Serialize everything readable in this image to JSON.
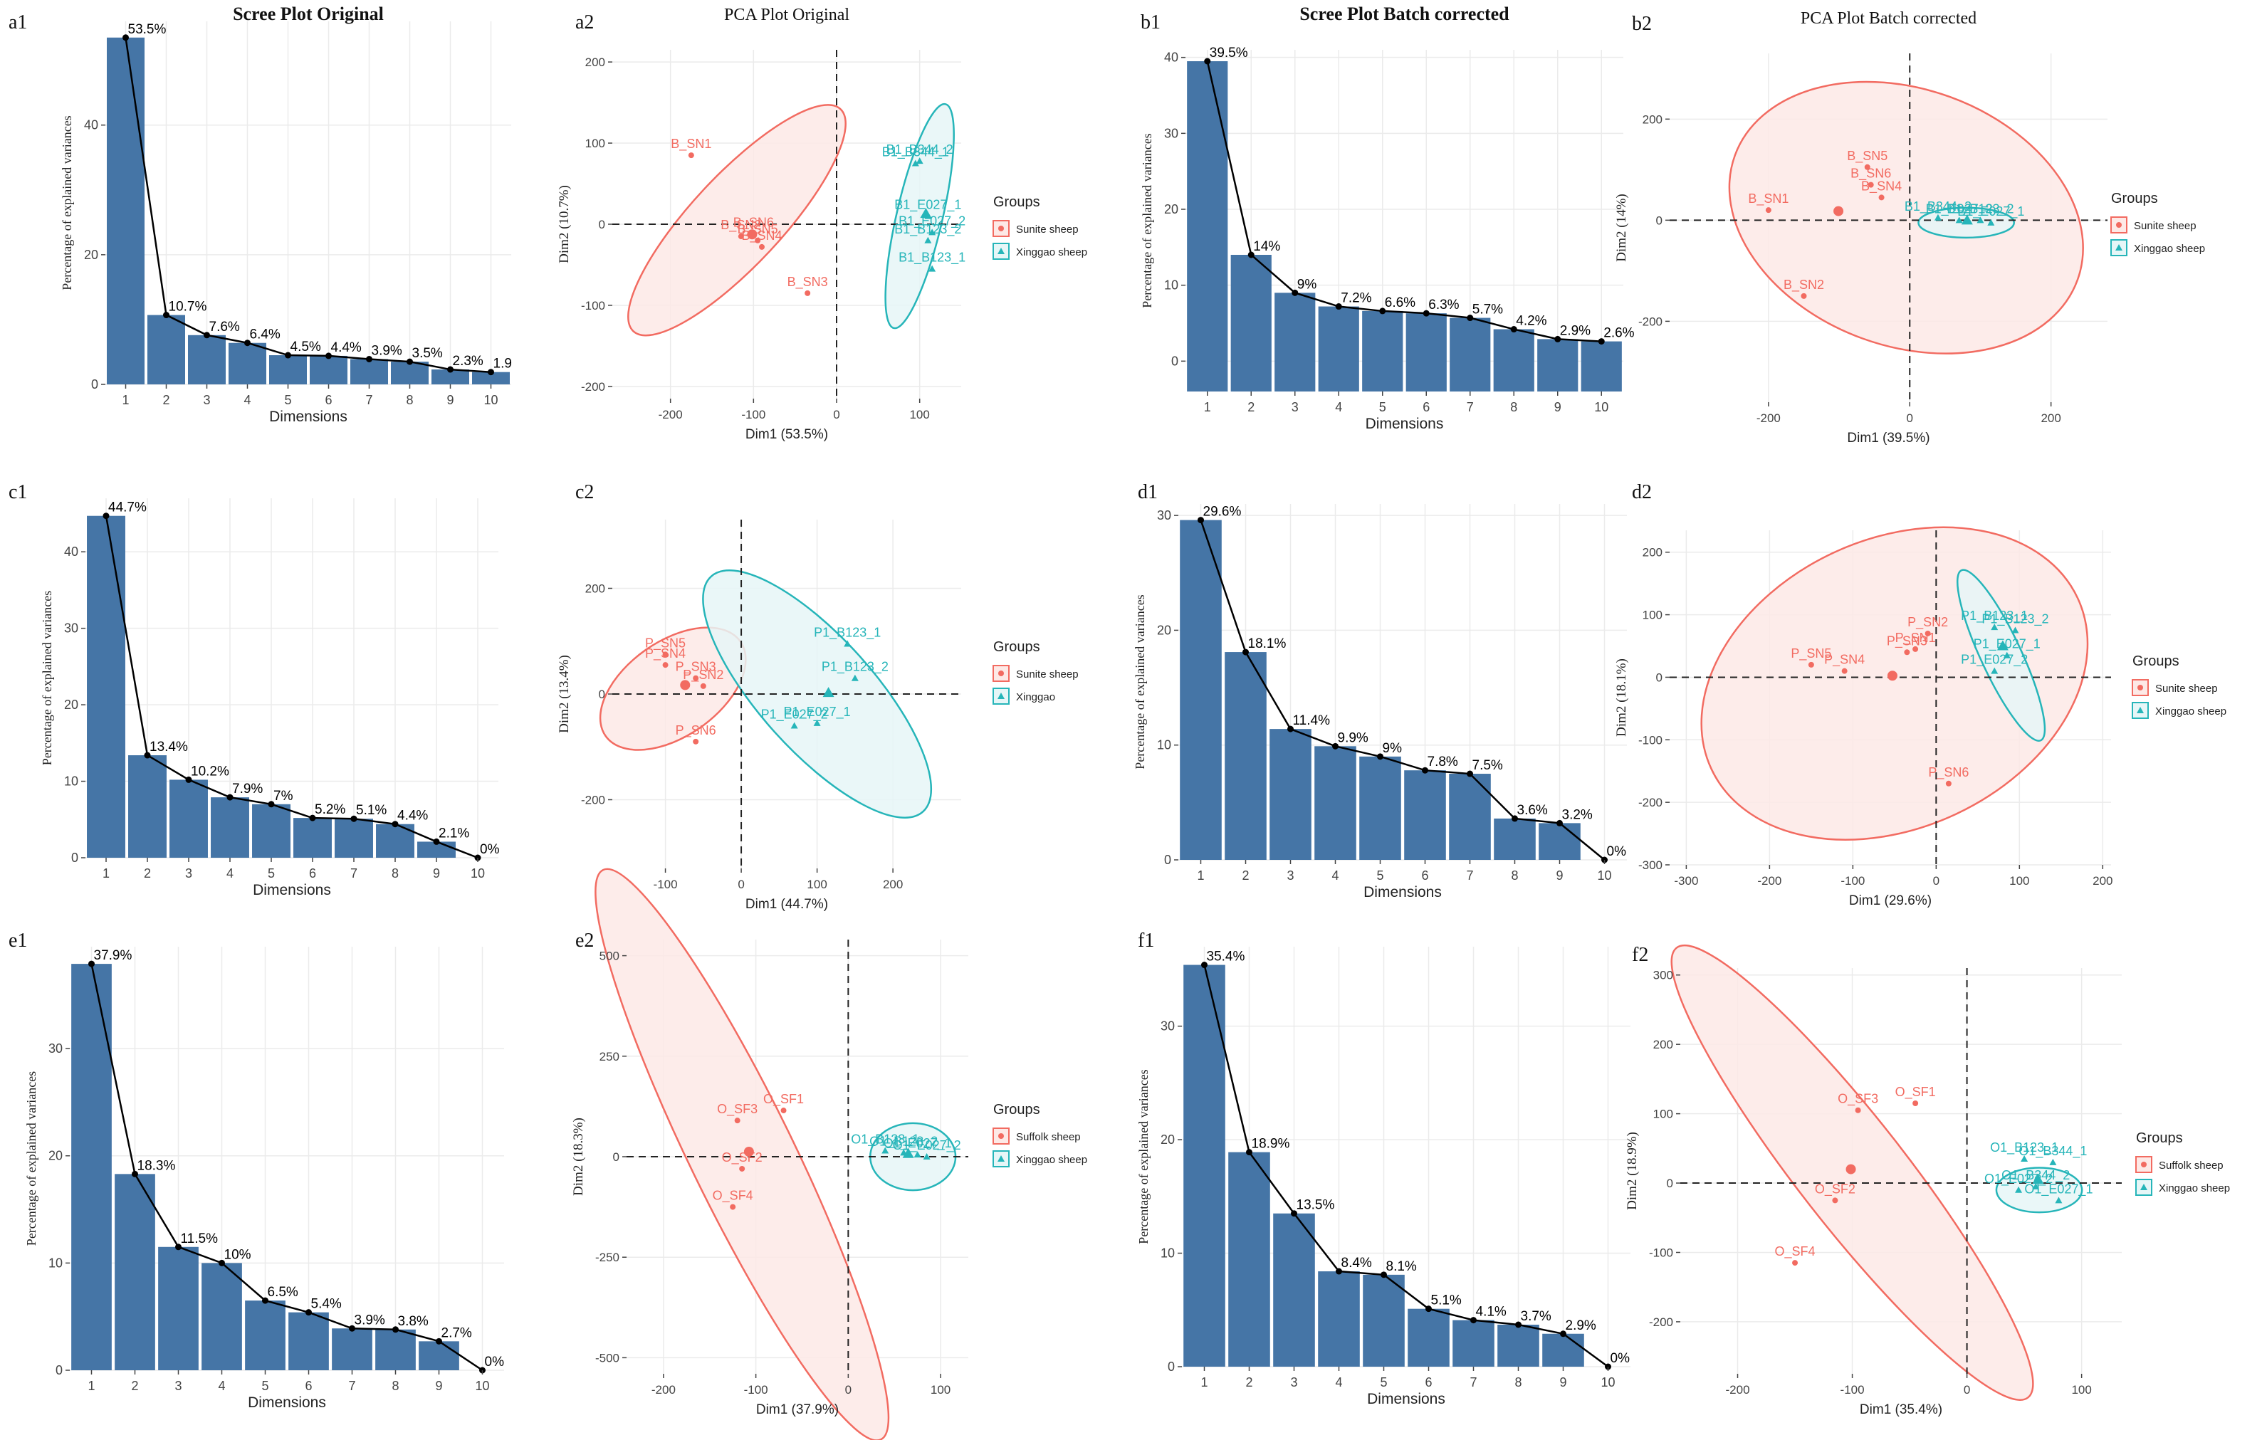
{
  "colors": {
    "bar": "#4575a6",
    "red": "#f26b61",
    "redFill": "#fde9e6",
    "cyan": "#26b5b9",
    "cyanFill": "#e6f6f7",
    "grid": "#ebebeb",
    "axis": "#333333"
  },
  "chart_data": [
    {
      "panel_label": "a1",
      "type": "bar",
      "title": "Scree  Plot Original",
      "xlabel": "Dimensions",
      "ylabel": "Percentage of explained variances",
      "categories": [
        "1",
        "2",
        "3",
        "4",
        "5",
        "6",
        "7",
        "8",
        "9",
        "10"
      ],
      "values": [
        53.5,
        10.7,
        7.6,
        6.4,
        4.5,
        4.4,
        3.9,
        3.5,
        2.3,
        1.9
      ],
      "point_labels": [
        "53.5%",
        "10.7%",
        "7.6%",
        "6.4%",
        "4.5%",
        "4.4%",
        "3.9%",
        "3.5%",
        "2.3%",
        "1.9"
      ],
      "ylim": [
        0,
        56
      ],
      "yticks": [
        "0",
        "20",
        "40"
      ],
      "ytick_values": [
        0,
        20,
        40
      ]
    },
    {
      "panel_label": "a2",
      "type": "scatter",
      "title": "PCA Plot Original",
      "xlabel": "Dim1 (53.5%)",
      "ylabel": "Dim2 (10.7%)",
      "xlim": [
        -270,
        150
      ],
      "ylim": [
        -215,
        215
      ],
      "xticks": [
        -200,
        -100,
        0,
        100
      ],
      "yticks": [
        -200,
        -100,
        0,
        100,
        200
      ],
      "legend": {
        "title": "Groups",
        "items": [
          "Sunite sheep",
          "Xinggao sheep"
        ]
      },
      "groups": [
        {
          "name": "Sunite sheep",
          "color": "red",
          "points": [
            {
              "label": "B_SN1",
              "x": -175,
              "y": 85
            },
            {
              "label": "B_SN2",
              "x": -115,
              "y": -15
            },
            {
              "label": "B_SN6",
              "x": -100,
              "y": -12
            },
            {
              "label": "B_SN5",
              "x": -95,
              "y": -20
            },
            {
              "label": "B_SN4",
              "x": -90,
              "y": -28
            },
            {
              "label": "B_SN3",
              "x": -35,
              "y": -85
            }
          ],
          "ellipse": {
            "cx": -120,
            "cy": 5,
            "rx": 185,
            "ry": 55,
            "angle": 47
          }
        },
        {
          "name": "Xinggao sheep",
          "color": "cyan",
          "points": [
            {
              "label": "B1_B344_1",
              "x": 95,
              "y": 75
            },
            {
              "label": "B1_B344_2",
              "x": 100,
              "y": 78
            },
            {
              "label": "B1_E027_1",
              "x": 110,
              "y": 10
            },
            {
              "label": "B1_E027_2",
              "x": 115,
              "y": -10
            },
            {
              "label": "B1_B123_2",
              "x": 110,
              "y": -20
            },
            {
              "label": "B1_B123_1",
              "x": 115,
              "y": -55
            }
          ],
          "ellipse": {
            "cx": 100,
            "cy": 10,
            "rx": 140,
            "ry": 28,
            "angle": 77
          }
        }
      ]
    },
    {
      "panel_label": "b1",
      "type": "bar",
      "title": "Scree Plot Batch corrected",
      "xlabel": "Dimensions",
      "ylabel": "Percentage of explained variances",
      "categories": [
        "1",
        "2",
        "3",
        "4",
        "5",
        "6",
        "7",
        "8",
        "9",
        "10"
      ],
      "values": [
        39.5,
        14,
        9,
        7.2,
        6.6,
        6.3,
        5.7,
        4.2,
        2.9,
        2.6
      ],
      "point_labels": [
        "39.5%",
        "14%",
        "9%",
        "7.2%",
        "6.6%",
        "6.3%",
        "5.7%",
        "4.2%",
        "2.9%",
        "2.6%"
      ],
      "ylim": [
        -4,
        41
      ],
      "yticks": [
        "0",
        "10",
        "20",
        "30",
        "40"
      ],
      "ytick_values": [
        0,
        10,
        20,
        30,
        40
      ]
    },
    {
      "panel_label": "b2",
      "type": "scatter",
      "title": "PCA Plot Batch corrected",
      "xlabel": "Dim1 (39.5%)",
      "ylabel": "Dim2 (14%)",
      "xlim": [
        -340,
        280
      ],
      "ylim": [
        -360,
        330
      ],
      "xticks": [
        -200,
        0,
        200
      ],
      "yticks": [
        -200,
        0,
        200
      ],
      "legend": {
        "title": "Groups",
        "items": [
          "Sunite sheep",
          "Xinggao sheep"
        ]
      },
      "groups": [
        {
          "name": "Sunite sheep",
          "color": "red",
          "points": [
            {
              "label": "B_SN5",
              "x": -60,
              "y": 105
            },
            {
              "label": "B_SN6",
              "x": -55,
              "y": 70
            },
            {
              "label": "B_SN4",
              "x": -40,
              "y": 45
            },
            {
              "label": "B_SN1",
              "x": -200,
              "y": 20
            },
            {
              "label": "B_SN2",
              "x": -150,
              "y": -150
            }
          ],
          "ellipse": {
            "cx": -5,
            "cy": 5,
            "rx": 305,
            "ry": 215,
            "angle": -20
          }
        },
        {
          "name": "Xinggao sheep",
          "color": "cyan",
          "points": [
            {
              "label": "B1_B344_2",
              "x": 40,
              "y": 5
            },
            {
              "label": "B1_E027_2",
              "x": 70,
              "y": 0
            },
            {
              "label": "B1_B123_2",
              "x": 100,
              "y": 0
            },
            {
              "label": "B1_E027_1",
              "x": 115,
              "y": -5
            }
          ],
          "ellipse": {
            "cx": 80,
            "cy": -5,
            "rx": 80,
            "ry": 25,
            "angle": 0
          }
        }
      ]
    },
    {
      "panel_label": "c1",
      "type": "bar",
      "title": "",
      "xlabel": "Dimensions",
      "ylabel": "Percentage of explained variances",
      "categories": [
        "1",
        "2",
        "3",
        "4",
        "5",
        "6",
        "7",
        "8",
        "9",
        "10"
      ],
      "values": [
        44.7,
        13.4,
        10.2,
        7.9,
        7,
        5.2,
        5.1,
        4.4,
        2.1,
        0
      ],
      "point_labels": [
        "44.7%",
        "13.4%",
        "10.2%",
        "7.9%",
        "7%",
        "5.2%",
        "5.1%",
        "4.4%",
        "2.1%",
        "0%"
      ],
      "ylim": [
        0,
        47
      ],
      "yticks": [
        "0",
        "10",
        "20",
        "30",
        "40"
      ],
      "ytick_values": [
        0,
        10,
        20,
        30,
        40
      ]
    },
    {
      "panel_label": "c2",
      "type": "scatter",
      "title": "",
      "xlabel": "Dim1 (44.7%)",
      "ylabel": "Dim2 (13.4%)",
      "xlim": [
        -170,
        290
      ],
      "ylim": [
        -330,
        330
      ],
      "xticks": [
        -100,
        0,
        100,
        200
      ],
      "yticks": [
        -200,
        0,
        200
      ],
      "legend": {
        "title": "Groups",
        "items": [
          "Sunite sheep",
          "Xinggao"
        ]
      },
      "groups": [
        {
          "name": "Sunite sheep",
          "color": "red",
          "points": [
            {
              "label": "P_SN5",
              "x": -100,
              "y": 75
            },
            {
              "label": "P_SN4",
              "x": -100,
              "y": 55
            },
            {
              "label": "P_SN3",
              "x": -60,
              "y": 30
            },
            {
              "label": "P_SN2",
              "x": -50,
              "y": 15
            },
            {
              "label": "P_SN6",
              "x": -60,
              "y": -90
            }
          ],
          "ellipse": {
            "cx": -90,
            "cy": 10,
            "rx": 130,
            "ry": 75,
            "angle": 35
          }
        },
        {
          "name": "Xinggao",
          "color": "cyan",
          "points": [
            {
              "label": "P1_B123_1",
              "x": 140,
              "y": 95
            },
            {
              "label": "P1_B123_2",
              "x": 150,
              "y": 30
            },
            {
              "label": "P1_E027_1",
              "x": 100,
              "y": -55
            },
            {
              "label": "P1_E027_2",
              "x": 70,
              "y": -60
            }
          ],
          "ellipse": {
            "cx": 100,
            "cy": 0,
            "rx": 250,
            "ry": 90,
            "angle": -48
          }
        }
      ]
    },
    {
      "panel_label": "d1",
      "type": "bar",
      "title": "",
      "xlabel": "Dimensions",
      "ylabel": "Percentage of explained variances",
      "categories": [
        "1",
        "2",
        "3",
        "4",
        "5",
        "6",
        "7",
        "8",
        "9",
        "10"
      ],
      "values": [
        29.6,
        18.1,
        11.4,
        9.9,
        9,
        7.8,
        7.5,
        3.6,
        3.2,
        0
      ],
      "point_labels": [
        "29.6%",
        "18.1%",
        "11.4%",
        "9.9%",
        "9%",
        "7.8%",
        "7.5%",
        "3.6%",
        "3.2%",
        "0%"
      ],
      "ylim": [
        0,
        31
      ],
      "yticks": [
        "0",
        "10",
        "20",
        "30"
      ],
      "ytick_values": [
        0,
        10,
        20,
        30
      ]
    },
    {
      "panel_label": "d2",
      "type": "scatter",
      "title": "",
      "xlabel": "Dim1 (29.6%)",
      "ylabel": "Dim2 (18.1%)",
      "xlim": [
        -320,
        210
      ],
      "ylim": [
        -300,
        235
      ],
      "xticks": [
        -300,
        -200,
        -100,
        0,
        100,
        200
      ],
      "yticks": [
        -300,
        -200,
        -100,
        0,
        100,
        200
      ],
      "legend": {
        "title": "Groups",
        "items": [
          "Sunite sheep",
          "Xinggao sheep"
        ]
      },
      "groups": [
        {
          "name": "Sunite sheep",
          "color": "red",
          "points": [
            {
              "label": "P_SN2",
              "x": -10,
              "y": 70
            },
            {
              "label": "P_SN1",
              "x": -25,
              "y": 45
            },
            {
              "label": "P_SN3",
              "x": -35,
              "y": 40
            },
            {
              "label": "P_SN5",
              "x": -150,
              "y": 20
            },
            {
              "label": "P_SN4",
              "x": -110,
              "y": 10
            },
            {
              "label": "P_SN6",
              "x": 15,
              "y": -170
            }
          ],
          "ellipse": {
            "cx": -50,
            "cy": -10,
            "rx": 280,
            "ry": 200,
            "angle": 25
          }
        },
        {
          "name": "Xinggao sheep",
          "color": "cyan",
          "points": [
            {
              "label": "P1_B123_1",
              "x": 70,
              "y": 80
            },
            {
              "label": "P1_B123_2",
              "x": 95,
              "y": 75
            },
            {
              "label": "P1_E027_1",
              "x": 85,
              "y": 35
            },
            {
              "label": "P1_E027_2",
              "x": 70,
              "y": 10
            }
          ],
          "ellipse": {
            "cx": 78,
            "cy": 35,
            "rx": 130,
            "ry": 28,
            "angle": -65
          }
        }
      ]
    },
    {
      "panel_label": "e1",
      "type": "bar",
      "title": "",
      "xlabel": "Dimensions",
      "ylabel": "Percentage of explained variances",
      "categories": [
        "1",
        "2",
        "3",
        "4",
        "5",
        "6",
        "7",
        "8",
        "9",
        "10"
      ],
      "values": [
        37.9,
        18.3,
        11.5,
        10,
        6.5,
        5.4,
        3.9,
        3.8,
        2.7,
        0
      ],
      "point_labels": [
        "37.9%",
        "18.3%",
        "11.5%",
        "10%",
        "6.5%",
        "5.4%",
        "3.9%",
        "3.8%",
        "2.7%",
        "0%"
      ],
      "ylim": [
        0,
        39.5
      ],
      "yticks": [
        "0",
        "10",
        "20",
        "30"
      ],
      "ytick_values": [
        0,
        10,
        20,
        30
      ]
    },
    {
      "panel_label": "e2",
      "type": "scatter",
      "title": "",
      "xlabel": "Dim1 (37.9%)",
      "ylabel": "Dim2 (18.3%)",
      "xlim": [
        -240,
        130
      ],
      "ylim": [
        -540,
        540
      ],
      "xticks": [
        -200,
        -100,
        0,
        100
      ],
      "yticks": [
        -500,
        -250,
        0,
        250,
        500
      ],
      "legend": {
        "title": "Groups",
        "items": [
          "Suffolk sheep",
          "Xinggao sheep"
        ]
      },
      "groups": [
        {
          "name": "Suffolk sheep",
          "color": "red",
          "points": [
            {
              "label": "O_SF1",
              "x": -70,
              "y": 115
            },
            {
              "label": "O_SF3",
              "x": -120,
              "y": 90
            },
            {
              "label": "O_SF2",
              "x": -115,
              "y": -30
            },
            {
              "label": "O_SF4",
              "x": -125,
              "y": -125
            }
          ],
          "ellipse": {
            "cx": -115,
            "cy": 5,
            "rx": 520,
            "ry": 85,
            "angle": -64
          }
        },
        {
          "name": "Xinggao sheep",
          "color": "cyan",
          "points": [
            {
              "label": "O1_B123_1",
              "x": 40,
              "y": 15
            },
            {
              "label": "O1_B123_2",
              "x": 60,
              "y": 10
            },
            {
              "label": "O1_E027_1",
              "x": 75,
              "y": 5
            },
            {
              "label": "O1_E027_2",
              "x": 85,
              "y": 0
            }
          ],
          "ellipse": {
            "cx": 70,
            "cy": 0,
            "rx": 70,
            "ry": 55,
            "angle": 0
          }
        }
      ]
    },
    {
      "panel_label": "f1",
      "type": "bar",
      "title": "",
      "xlabel": "Dimensions",
      "ylabel": "Percentage of explained variances",
      "categories": [
        "1",
        "2",
        "3",
        "4",
        "5",
        "6",
        "7",
        "8",
        "9",
        "10"
      ],
      "values": [
        35.4,
        18.9,
        13.5,
        8.4,
        8.1,
        5.1,
        4.1,
        3.7,
        2.9,
        0
      ],
      "point_labels": [
        "35.4%",
        "18.9%",
        "13.5%",
        "8.4%",
        "8.1%",
        "5.1%",
        "4.1%",
        "3.7%",
        "2.9%",
        "0%"
      ],
      "ylim": [
        0,
        37
      ],
      "yticks": [
        "0",
        "10",
        "20",
        "30"
      ],
      "ytick_values": [
        0,
        10,
        20,
        30
      ]
    },
    {
      "panel_label": "f2",
      "type": "scatter",
      "title": "",
      "xlabel": "Dim1 (35.4%)",
      "ylabel": "Dim2 (18.9%)",
      "xlim": [
        -250,
        135
      ],
      "ylim": [
        -275,
        310
      ],
      "xticks": [
        -200,
        -100,
        0,
        100
      ],
      "yticks": [
        -200,
        -100,
        0,
        100,
        200,
        300
      ],
      "legend": {
        "title": "Groups",
        "items": [
          "Suffolk sheep",
          "Xinggao sheep"
        ]
      },
      "groups": [
        {
          "name": "Suffolk sheep",
          "color": "red",
          "points": [
            {
              "label": "O_SF1",
              "x": -45,
              "y": 115
            },
            {
              "label": "O_SF3",
              "x": -95,
              "y": 105
            },
            {
              "label": "O_SF2",
              "x": -115,
              "y": -25
            },
            {
              "label": "O_SF4",
              "x": -150,
              "y": -115
            }
          ],
          "ellipse": {
            "cx": -100,
            "cy": 15,
            "rx": 320,
            "ry": 60,
            "angle": -52
          }
        },
        {
          "name": "Xinggao sheep",
          "color": "cyan",
          "points": [
            {
              "label": "O1_B123_1",
              "x": 50,
              "y": 35
            },
            {
              "label": "O1_B344_1",
              "x": 75,
              "y": 30
            },
            {
              "label": "O1_E027_1",
              "x": 80,
              "y": -25
            },
            {
              "label": "O1_B344_2",
              "x": 60,
              "y": -5
            },
            {
              "label": "O1_E027_2",
              "x": 45,
              "y": -10
            }
          ],
          "ellipse": {
            "cx": 63,
            "cy": -10,
            "rx": 48,
            "ry": 25,
            "angle": 0
          }
        }
      ]
    }
  ]
}
